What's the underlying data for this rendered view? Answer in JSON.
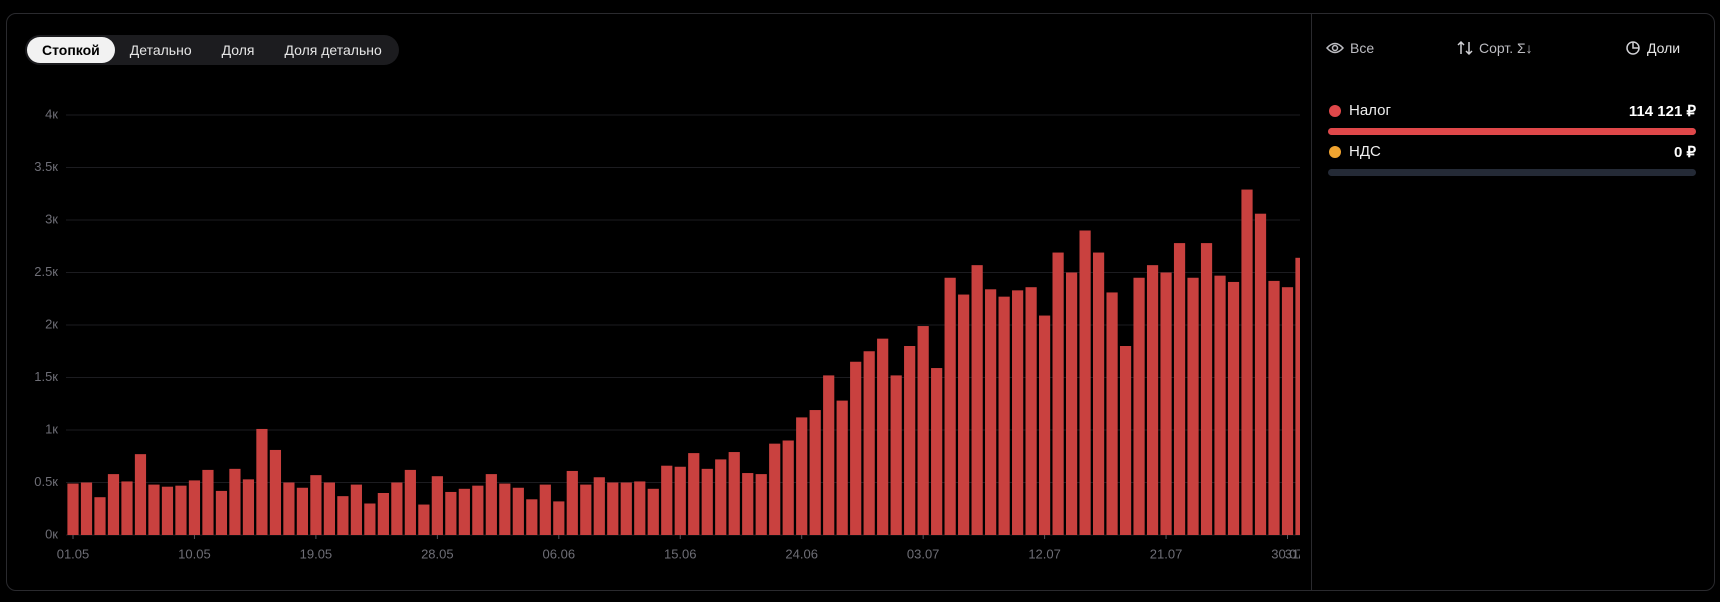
{
  "tabs": [
    "Стопкой",
    "Детально",
    "Доля",
    "Доля детально"
  ],
  "active_tab": 0,
  "controls": [
    "Все",
    "Сорт. Σ↓",
    "Доли"
  ],
  "legend": [
    {
      "name": "Налог",
      "color": "#e0484a",
      "total": 114121,
      "total_label": "114 121 ₽"
    },
    {
      "name": "НДС",
      "color": "#f0a430",
      "total": 0,
      "total_label": "0 ₽"
    }
  ],
  "chart_data": {
    "type": "bar",
    "color": "#c9413f",
    "grid": true,
    "categories": [
      "01.05",
      null,
      null,
      null,
      null,
      null,
      null,
      null,
      null,
      "10.05",
      null,
      null,
      null,
      null,
      null,
      null,
      null,
      null,
      "19.05",
      null,
      null,
      null,
      null,
      null,
      null,
      null,
      null,
      "28.05",
      null,
      null,
      null,
      null,
      null,
      null,
      null,
      null,
      "06.06",
      null,
      null,
      null,
      null,
      null,
      null,
      null,
      null,
      "15.06",
      null,
      null,
      null,
      null,
      null,
      null,
      null,
      null,
      "24.06",
      null,
      null,
      null,
      null,
      null,
      null,
      null,
      null,
      "03.07",
      null,
      null,
      null,
      null,
      null,
      null,
      null,
      null,
      "12.07",
      null,
      null,
      null,
      null,
      null,
      null,
      null,
      null,
      "21.07",
      null,
      null,
      null,
      null,
      null,
      null,
      null,
      null,
      "30.07",
      "31.07"
    ],
    "values": [
      490,
      500,
      360,
      580,
      510,
      770,
      480,
      460,
      470,
      520,
      620,
      420,
      630,
      530,
      1010,
      810,
      500,
      450,
      570,
      500,
      370,
      480,
      300,
      400,
      500,
      620,
      290,
      560,
      410,
      440,
      470,
      580,
      490,
      450,
      340,
      480,
      320,
      610,
      480,
      550,
      500,
      500,
      510,
      440,
      660,
      650,
      780,
      630,
      720,
      790,
      590,
      580,
      870,
      900,
      1120,
      1190,
      1520,
      1280,
      1650,
      1750,
      1870,
      1520,
      1800,
      1990,
      1590,
      2450,
      2290,
      2570,
      2340,
      2270,
      2330,
      2360,
      2090,
      2690,
      2500,
      2900,
      2690,
      2310,
      1800,
      2450,
      2570,
      2500,
      2780,
      2450,
      2780,
      2470,
      2410,
      3290,
      3060,
      2420,
      2360,
      2640
    ],
    "ylim": [
      0,
      4000
    ],
    "yticks": [
      {
        "value": 0,
        "label": "0к"
      },
      {
        "value": 500,
        "label": "0.5к"
      },
      {
        "value": 1000,
        "label": "1к"
      },
      {
        "value": 1500,
        "label": "1.5к"
      },
      {
        "value": 2000,
        "label": "2к"
      },
      {
        "value": 2500,
        "label": "2.5к"
      },
      {
        "value": 3000,
        "label": "3к"
      },
      {
        "value": 3500,
        "label": "3.5к"
      },
      {
        "value": 4000,
        "label": "4к"
      }
    ]
  }
}
